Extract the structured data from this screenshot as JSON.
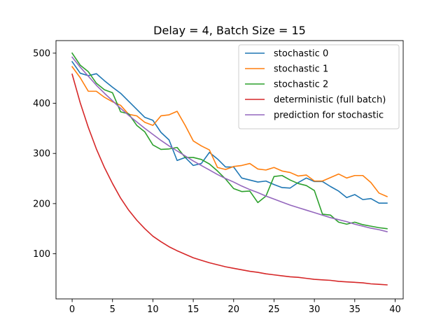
{
  "chart_data": {
    "type": "line",
    "title": "Delay = 4, Batch Size = 15",
    "xlabel": "",
    "ylabel": "",
    "xlim": [
      -2,
      41
    ],
    "ylim": [
      10,
      525
    ],
    "xticks": [
      0,
      5,
      10,
      15,
      20,
      25,
      30,
      35,
      40
    ],
    "yticks": [
      100,
      200,
      300,
      400,
      500
    ],
    "grid": false,
    "legend_position": "top-right",
    "x": [
      0,
      1,
      2,
      3,
      4,
      5,
      6,
      7,
      8,
      9,
      10,
      11,
      12,
      13,
      14,
      15,
      16,
      17,
      18,
      19,
      20,
      21,
      22,
      23,
      24,
      25,
      26,
      27,
      28,
      29,
      30,
      31,
      32,
      33,
      34,
      35,
      36,
      37,
      38,
      39
    ],
    "series": [
      {
        "name": "stochastic 0",
        "color": "#1f77b4",
        "values": [
          483,
          460,
          455,
          459,
          445,
          432,
          420,
          404,
          388,
          372,
          366,
          342,
          327,
          286,
          292,
          276,
          280,
          302,
          289,
          273,
          273,
          251,
          247,
          243,
          245,
          238,
          232,
          231,
          242,
          251,
          244,
          244,
          234,
          225,
          212,
          218,
          208,
          210,
          201,
          201
        ]
      },
      {
        "name": "stochastic 1",
        "color": "#ff7f0e",
        "values": [
          473,
          451,
          424,
          424,
          412,
          403,
          396,
          378,
          375,
          362,
          356,
          375,
          377,
          384,
          356,
          325,
          315,
          307,
          272,
          268,
          274,
          276,
          280,
          269,
          267,
          272,
          265,
          262,
          255,
          257,
          245,
          245,
          252,
          259,
          251,
          256,
          256,
          242,
          221,
          214
        ]
      },
      {
        "name": "stochastic 2",
        "color": "#2ca02c",
        "values": [
          500,
          476,
          463,
          440,
          427,
          421,
          383,
          379,
          356,
          343,
          317,
          308,
          309,
          312,
          292,
          292,
          288,
          279,
          265,
          249,
          230,
          224,
          225,
          202,
          215,
          254,
          256,
          247,
          240,
          236,
          226,
          179,
          177,
          163,
          159,
          163,
          158,
          155,
          152,
          150
        ]
      },
      {
        "name": "deterministic (full batch)",
        "color": "#d62728",
        "values": [
          458,
          401,
          352,
          309,
          272,
          240,
          211,
          187,
          167,
          150,
          135,
          124,
          114,
          106,
          99,
          92,
          87,
          82,
          78,
          74,
          71,
          68,
          65,
          63,
          60,
          58,
          56,
          54,
          53,
          51,
          49,
          48,
          47,
          45,
          44,
          43,
          42,
          40,
          39,
          38
        ]
      },
      {
        "name": "prediction for stochastic",
        "color": "#9467bd",
        "values": [
          492,
          472,
          454,
          436,
          420,
          405,
          390,
          376,
          363,
          350,
          338,
          326,
          315,
          305,
          295,
          285,
          276,
          267,
          258,
          250,
          243,
          235,
          228,
          222,
          215,
          209,
          203,
          197,
          192,
          187,
          182,
          177,
          172,
          168,
          164,
          159,
          155,
          151,
          148,
          144
        ]
      }
    ]
  }
}
